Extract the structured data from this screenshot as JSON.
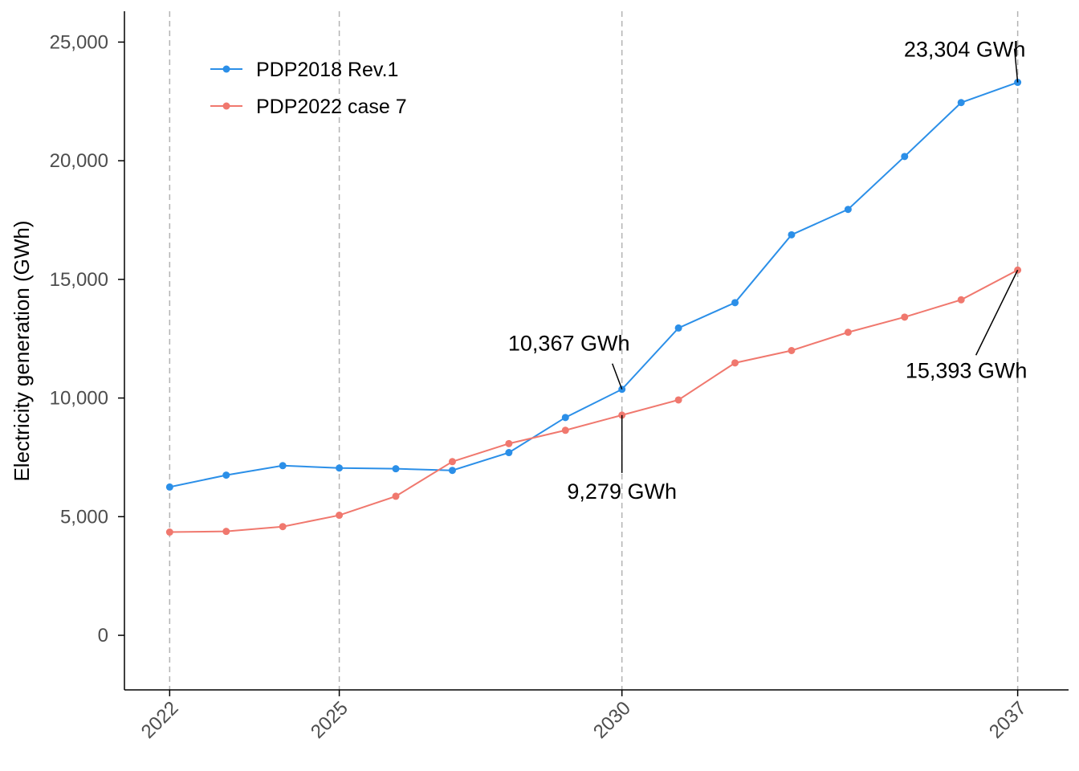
{
  "chart_data": {
    "type": "line",
    "ylabel": "Electricity generation (GWh)",
    "xlabel": "",
    "xlim": [
      2021.2,
      2037.9
    ],
    "ylim": [
      -2300,
      26300
    ],
    "x_ticks": [
      2022,
      2025,
      2030,
      2037
    ],
    "x_tick_labels": [
      "2022",
      "2025",
      "2030",
      "2037"
    ],
    "y_ticks": [
      0,
      5000,
      10000,
      15000,
      20000,
      25000
    ],
    "y_tick_labels": [
      "0",
      "5,000",
      "10,000",
      "15,000",
      "20,000",
      "25,000"
    ],
    "grid": "vertical dashed lines at x ticks",
    "legend_position": "top-left",
    "x": [
      2022,
      2023,
      2024,
      2025,
      2026,
      2027,
      2028,
      2029,
      2030,
      2031,
      2032,
      2033,
      2034,
      2035,
      2036,
      2037
    ],
    "series": [
      {
        "name": "PDP2018 Rev.1",
        "color": "#2b8fe8",
        "values": [
          6250,
          6750,
          7150,
          7050,
          7020,
          6950,
          7700,
          9180,
          10367,
          12950,
          14020,
          16880,
          17950,
          20180,
          22450,
          23304
        ]
      },
      {
        "name": "PDP2022 case 7",
        "color": "#f0786e",
        "values": [
          4350,
          4380,
          4580,
          5060,
          5860,
          7320,
          8080,
          8640,
          9279,
          9920,
          11480,
          12000,
          12770,
          13410,
          14140,
          15393
        ]
      }
    ],
    "annotations": [
      {
        "text": "23,304 GWh",
        "x": 2037,
        "y": 23304,
        "series": "PDP2018 Rev.1"
      },
      {
        "text": "10,367 GWh",
        "x": 2030,
        "y": 10367,
        "series": "PDP2018 Rev.1"
      },
      {
        "text": "9,279 GWh",
        "x": 2030,
        "y": 9279,
        "series": "PDP2022 case 7"
      },
      {
        "text": "15,393 GWh",
        "x": 2037,
        "y": 15393,
        "series": "PDP2022 case 7"
      }
    ]
  }
}
